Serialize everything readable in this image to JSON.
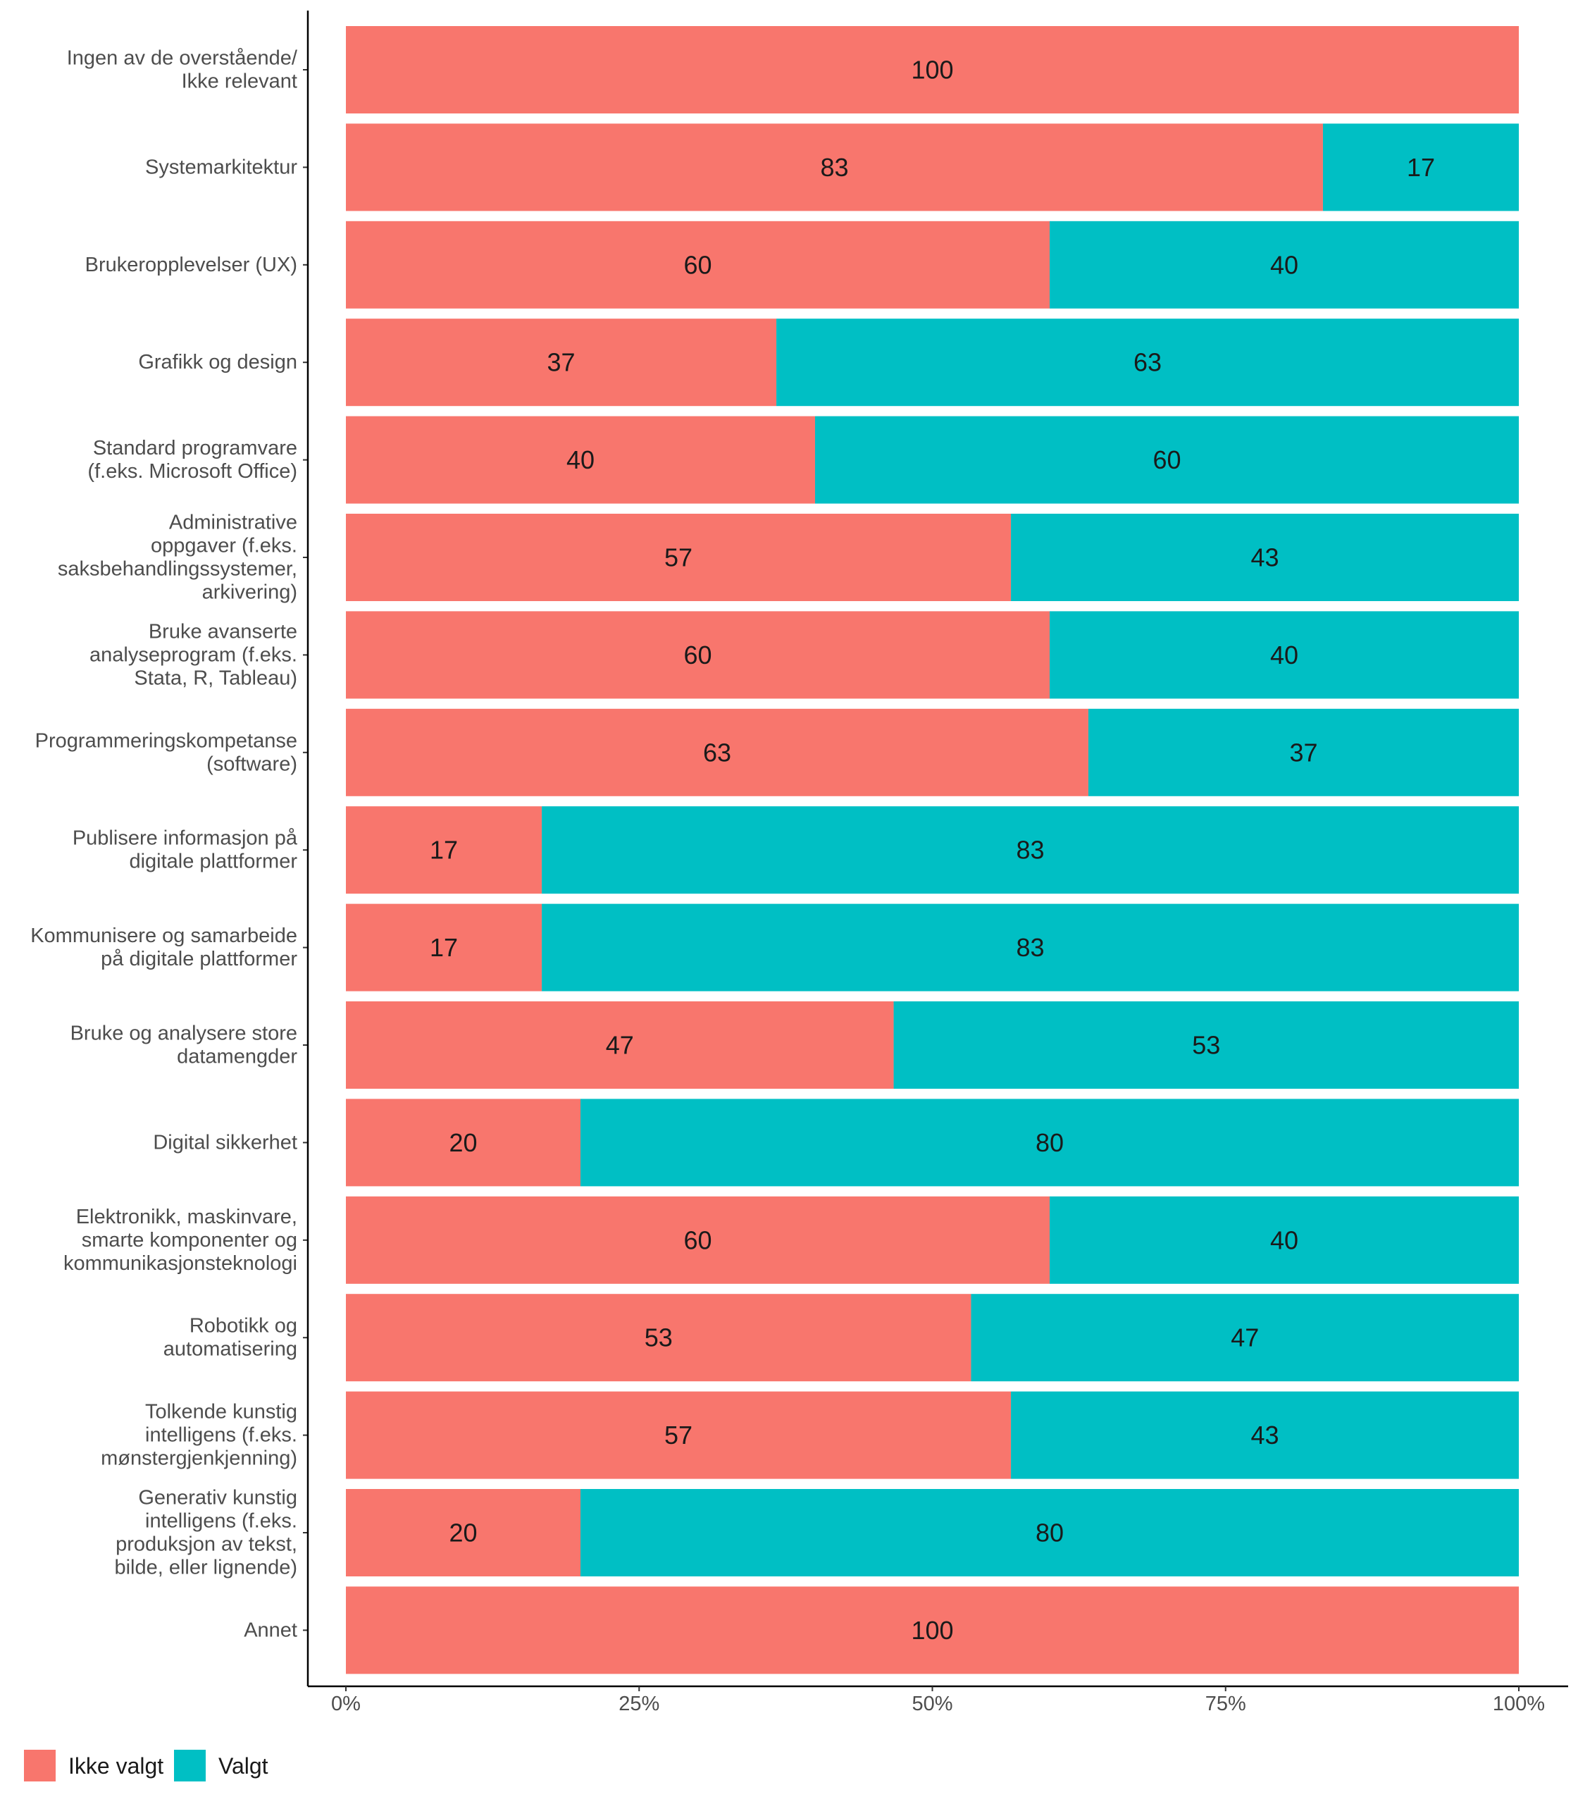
{
  "chart_data": {
    "type": "bar",
    "orientation": "horizontal",
    "stacked": true,
    "percent_axis": true,
    "categories": [
      [
        "Ingen av de overstående/",
        "Ikke relevant"
      ],
      [
        "Systemarkitektur"
      ],
      [
        "Brukeropplevelser (UX)"
      ],
      [
        "Grafikk og design"
      ],
      [
        "Standard programvare",
        "(f.eks. Microsoft Office)"
      ],
      [
        "Administrative",
        "oppgaver (f.eks.",
        "saksbehandlingssystemer,",
        "arkivering)"
      ],
      [
        "Bruke avanserte",
        "analyseprogram (f.eks.",
        "Stata, R, Tableau)"
      ],
      [
        "Programmeringskompetanse",
        "(software)"
      ],
      [
        "Publisere informasjon på",
        "digitale plattformer"
      ],
      [
        "Kommunisere og samarbeide",
        "på digitale plattformer"
      ],
      [
        "Bruke og analysere store",
        "datamengder"
      ],
      [
        "Digital sikkerhet"
      ],
      [
        "Elektronikk, maskinvare,",
        "smarte komponenter og",
        "kommunikasjonsteknologi"
      ],
      [
        "Robotikk og",
        "automatisering"
      ],
      [
        "Tolkende kunstig",
        "intelligens (f.eks.",
        "mønstergjenkjenning)"
      ],
      [
        "Generativ kunstig",
        "intelligens (f.eks.",
        "produksjon av tekst,",
        "bilde, eller lignende)"
      ],
      [
        "Annet"
      ]
    ],
    "series": [
      {
        "name": "Ikke valgt",
        "color": "#F8766D",
        "values": [
          100,
          83.3,
          60,
          36.7,
          40,
          56.7,
          60,
          63.3,
          16.7,
          16.7,
          46.7,
          20,
          60,
          53.3,
          56.7,
          20,
          100
        ],
        "labels": [
          "100",
          "83",
          "60",
          "37",
          "40",
          "57",
          "60",
          "63",
          "17",
          "17",
          "47",
          "20",
          "60",
          "53",
          "57",
          "20",
          "100"
        ]
      },
      {
        "name": "Valgt",
        "color": "#00BFC4",
        "values": [
          0,
          16.7,
          40,
          63.3,
          60,
          43.3,
          40,
          36.7,
          83.3,
          83.3,
          53.3,
          80,
          40,
          46.7,
          43.3,
          80,
          0
        ],
        "labels": [
          "",
          "17",
          "40",
          "63",
          "60",
          "43",
          "40",
          "37",
          "83",
          "83",
          "53",
          "80",
          "40",
          "47",
          "43",
          "80",
          ""
        ]
      }
    ],
    "x_ticks": [
      "0%",
      "25%",
      "50%",
      "75%",
      "100%"
    ],
    "xlim": [
      0,
      100
    ],
    "xlabel": "",
    "ylabel": "",
    "title": "",
    "grid": false,
    "legend_position": "bottom-left"
  }
}
